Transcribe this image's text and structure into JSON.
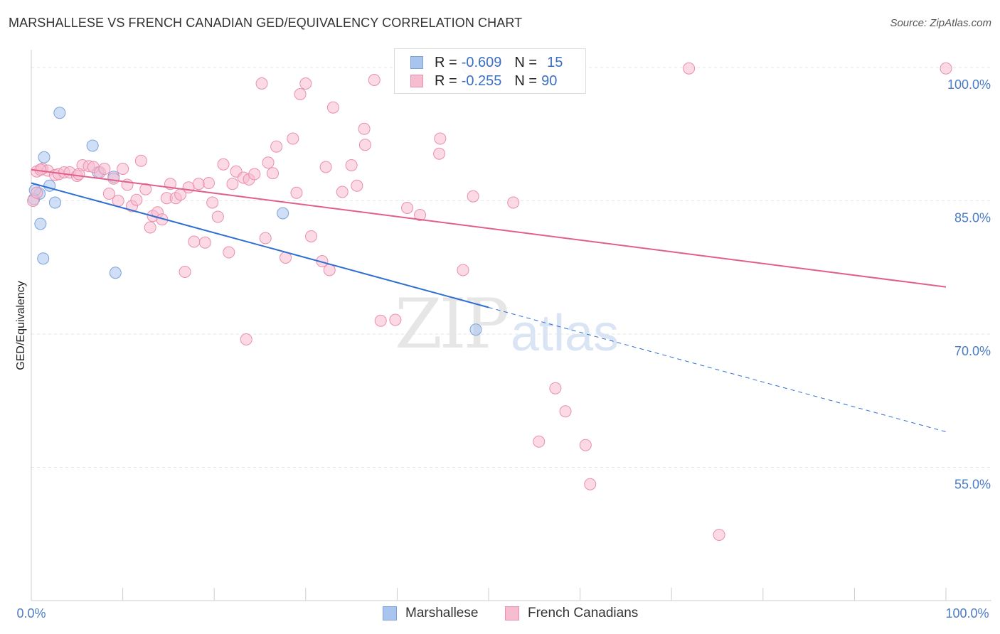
{
  "header": {
    "title": "MARSHALLESE VS FRENCH CANADIAN GED/EQUIVALENCY CORRELATION CHART",
    "source": "Source: ZipAtlas.com"
  },
  "watermark": {
    "zip": "ZIP",
    "atlas": "atlas"
  },
  "legend": {
    "rows": [
      {
        "r_label": "R =",
        "r_value": "-0.609",
        "n_label": "N =",
        "n_value": "15",
        "color": "#a9c5ef",
        "border": "#7aa3dd"
      },
      {
        "r_label": "R =",
        "r_value": "-0.255",
        "n_label": "N =",
        "n_value": "90",
        "color": "#f7bcd0",
        "border": "#ea8fae"
      }
    ]
  },
  "bottom_legend": {
    "items": [
      {
        "label": "Marshallese",
        "color": "#a9c5ef",
        "border": "#7aa3dd"
      },
      {
        "label": "French Canadians",
        "color": "#f7bcd0",
        "border": "#ea8fae"
      }
    ]
  },
  "chart_data": {
    "type": "scatter",
    "ylabel": "GED/Equivalency",
    "xlim": [
      0,
      100
    ],
    "ylim": [
      40,
      102
    ],
    "x_tick_labels": [
      "0.0%",
      "100.0%"
    ],
    "y_ticks": [
      55,
      70,
      85,
      100
    ],
    "y_tick_labels": [
      "55.0%",
      "70.0%",
      "85.0%",
      "100.0%"
    ],
    "grid": true,
    "series": [
      {
        "name": "Marshallese",
        "color": "#a9c5ef",
        "stroke": "#7aa3dd",
        "line_color": "#2f6fd0",
        "trend": {
          "x1": 0,
          "y1": 87.0,
          "x2": 50,
          "y2": 73.0,
          "dash_to_x": 100,
          "dash_to_y": 59.0
        },
        "points": [
          [
            0.3,
            85.2
          ],
          [
            0.9,
            85.8
          ],
          [
            1.0,
            82.4
          ],
          [
            1.3,
            78.5
          ],
          [
            1.4,
            89.9
          ],
          [
            2.0,
            86.7
          ],
          [
            2.6,
            84.8
          ],
          [
            3.1,
            94.9
          ],
          [
            6.7,
            91.2
          ],
          [
            7.3,
            88.2
          ],
          [
            9.0,
            87.7
          ],
          [
            9.2,
            76.9
          ],
          [
            27.5,
            83.6
          ],
          [
            48.6,
            70.5
          ],
          [
            0.4,
            86.2
          ]
        ]
      },
      {
        "name": "French Canadians",
        "color": "#f7bcd0",
        "stroke": "#ea8fae",
        "line_color": "#e0608a",
        "trend": {
          "x1": 0,
          "y1": 88.5,
          "x2": 100,
          "y2": 75.3
        },
        "points": [
          [
            0.2,
            85.0
          ],
          [
            0.6,
            88.3
          ],
          [
            1.2,
            88.6
          ],
          [
            1.8,
            88.4
          ],
          [
            2.6,
            87.9
          ],
          [
            3.0,
            88.0
          ],
          [
            3.6,
            88.2
          ],
          [
            4.2,
            88.2
          ],
          [
            5.0,
            87.8
          ],
          [
            5.6,
            89.0
          ],
          [
            6.3,
            88.9
          ],
          [
            6.8,
            88.8
          ],
          [
            7.5,
            88.2
          ],
          [
            8.0,
            88.6
          ],
          [
            8.5,
            85.8
          ],
          [
            9.0,
            87.5
          ],
          [
            9.5,
            85.0
          ],
          [
            10.0,
            88.6
          ],
          [
            10.5,
            86.8
          ],
          [
            11.0,
            84.4
          ],
          [
            11.5,
            85.1
          ],
          [
            12.0,
            89.5
          ],
          [
            12.5,
            86.3
          ],
          [
            13.0,
            82.0
          ],
          [
            13.3,
            83.3
          ],
          [
            13.8,
            83.7
          ],
          [
            14.3,
            82.9
          ],
          [
            14.8,
            85.3
          ],
          [
            15.2,
            86.9
          ],
          [
            15.8,
            85.3
          ],
          [
            16.3,
            85.7
          ],
          [
            16.8,
            77.0
          ],
          [
            17.2,
            86.5
          ],
          [
            17.8,
            80.4
          ],
          [
            18.3,
            86.9
          ],
          [
            19.0,
            80.3
          ],
          [
            19.4,
            87.0
          ],
          [
            19.8,
            84.8
          ],
          [
            20.4,
            83.2
          ],
          [
            21.0,
            89.1
          ],
          [
            21.6,
            79.2
          ],
          [
            22.0,
            86.9
          ],
          [
            22.4,
            88.3
          ],
          [
            23.2,
            87.6
          ],
          [
            23.5,
            69.4
          ],
          [
            23.8,
            87.4
          ],
          [
            24.4,
            88.0
          ],
          [
            25.2,
            98.2
          ],
          [
            25.6,
            80.8
          ],
          [
            25.9,
            89.3
          ],
          [
            26.4,
            88.1
          ],
          [
            26.8,
            91.1
          ],
          [
            27.8,
            78.6
          ],
          [
            28.6,
            92.0
          ],
          [
            29.0,
            85.9
          ],
          [
            29.4,
            97.0
          ],
          [
            30.0,
            98.2
          ],
          [
            30.6,
            81.0
          ],
          [
            31.8,
            78.2
          ],
          [
            32.2,
            88.8
          ],
          [
            32.6,
            77.2
          ],
          [
            33.0,
            95.5
          ],
          [
            34.0,
            86.0
          ],
          [
            35.0,
            89.0
          ],
          [
            35.6,
            86.7
          ],
          [
            36.4,
            93.1
          ],
          [
            36.5,
            91.3
          ],
          [
            37.5,
            98.6
          ],
          [
            38.2,
            71.5
          ],
          [
            39.8,
            71.6
          ],
          [
            41.1,
            84.2
          ],
          [
            42.5,
            83.4
          ],
          [
            44.6,
            90.3
          ],
          [
            44.7,
            92.0
          ],
          [
            47.2,
            77.2
          ],
          [
            47.8,
            99.9
          ],
          [
            48.3,
            85.5
          ],
          [
            50.2,
            99.9
          ],
          [
            52.7,
            84.8
          ],
          [
            55.5,
            57.9
          ],
          [
            57.3,
            63.9
          ],
          [
            58.4,
            61.3
          ],
          [
            60.6,
            57.5
          ],
          [
            61.1,
            53.1
          ],
          [
            71.9,
            99.9
          ],
          [
            75.2,
            47.4
          ],
          [
            100.0,
            99.9
          ],
          [
            0.6,
            85.9
          ],
          [
            1.0,
            88.5
          ],
          [
            5.2,
            88.0
          ]
        ]
      }
    ]
  }
}
